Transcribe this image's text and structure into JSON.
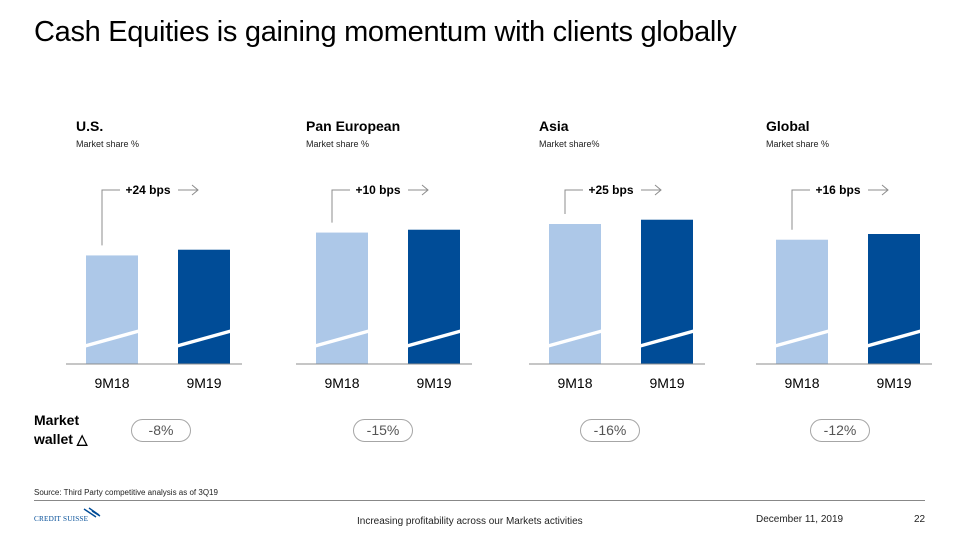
{
  "title": "Cash Equities is gaining momentum with clients globally",
  "chart_data": [
    {
      "type": "bar",
      "title": "U.S.",
      "subtitle": "Market share %",
      "categories": [
        "9M18",
        "9M19"
      ],
      "values": [
        76,
        80
      ],
      "change_label": "+24 bps",
      "ylim": [
        0,
        105
      ],
      "colors": [
        "#adc8e8",
        "#004c97"
      ]
    },
    {
      "type": "bar",
      "title": "Pan European",
      "subtitle": "Market share %",
      "categories": [
        "9M18",
        "9M19"
      ],
      "values": [
        92,
        94
      ],
      "change_label": "+10 bps",
      "ylim": [
        0,
        105
      ],
      "colors": [
        "#adc8e8",
        "#004c97"
      ]
    },
    {
      "type": "bar",
      "title": "Asia",
      "subtitle": "Market share%",
      "categories": [
        "9M18",
        "9M19"
      ],
      "values": [
        98,
        101
      ],
      "change_label": "+25 bps",
      "ylim": [
        0,
        105
      ],
      "colors": [
        "#adc8e8",
        "#004c97"
      ]
    },
    {
      "type": "bar",
      "title": "Global",
      "subtitle": "Market share %",
      "categories": [
        "9M18",
        "9M19"
      ],
      "values": [
        87,
        91
      ],
      "change_label": "+16 bps",
      "ylim": [
        0,
        105
      ],
      "colors": [
        "#adc8e8",
        "#004c97"
      ]
    }
  ],
  "wallet": {
    "label_line1": "Market",
    "label_line2": "wallet △",
    "values": [
      "-8%",
      "-15%",
      "-16%",
      "-12%"
    ]
  },
  "footer": {
    "source": "Source: Third Party competitive analysis as of 3Q19",
    "logo": "CREDIT SUISSE",
    "tagline": "Increasing profitability across our Markets activities",
    "date": "December 11, 2019",
    "page": "22"
  }
}
